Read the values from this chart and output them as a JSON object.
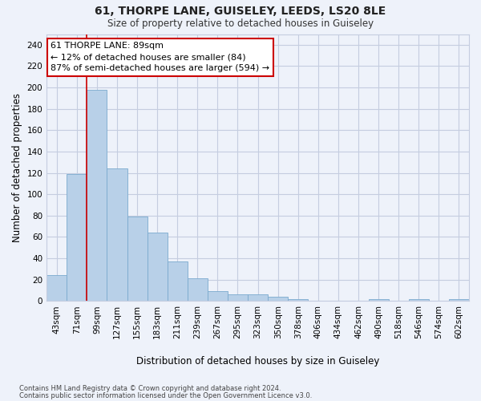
{
  "title1": "61, THORPE LANE, GUISELEY, LEEDS, LS20 8LE",
  "title2": "Size of property relative to detached houses in Guiseley",
  "xlabel": "Distribution of detached houses by size in Guiseley",
  "ylabel": "Number of detached properties",
  "bar_color": "#b8d0e8",
  "bar_edge_color": "#7aaace",
  "background_color": "#eef2fa",
  "grid_color": "#c5cde0",
  "categories": [
    "43sqm",
    "71sqm",
    "99sqm",
    "127sqm",
    "155sqm",
    "183sqm",
    "211sqm",
    "239sqm",
    "267sqm",
    "295sqm",
    "323sqm",
    "350sqm",
    "378sqm",
    "406sqm",
    "434sqm",
    "462sqm",
    "490sqm",
    "518sqm",
    "546sqm",
    "574sqm",
    "602sqm"
  ],
  "values": [
    24,
    119,
    198,
    124,
    79,
    64,
    37,
    21,
    9,
    6,
    6,
    4,
    2,
    0,
    0,
    0,
    2,
    0,
    2,
    0,
    2
  ],
  "annotation_text": "61 THORPE LANE: 89sqm\n← 12% of detached houses are smaller (84)\n87% of semi-detached houses are larger (594) →",
  "annotation_box_color": "#ffffff",
  "annotation_box_edge_color": "#cc0000",
  "red_line_color": "#cc0000",
  "red_line_bin": 1.5,
  "ylim": [
    0,
    250
  ],
  "yticks": [
    0,
    20,
    40,
    60,
    80,
    100,
    120,
    140,
    160,
    180,
    200,
    220,
    240
  ],
  "footnote1": "Contains HM Land Registry data © Crown copyright and database right 2024.",
  "footnote2": "Contains public sector information licensed under the Open Government Licence v3.0."
}
